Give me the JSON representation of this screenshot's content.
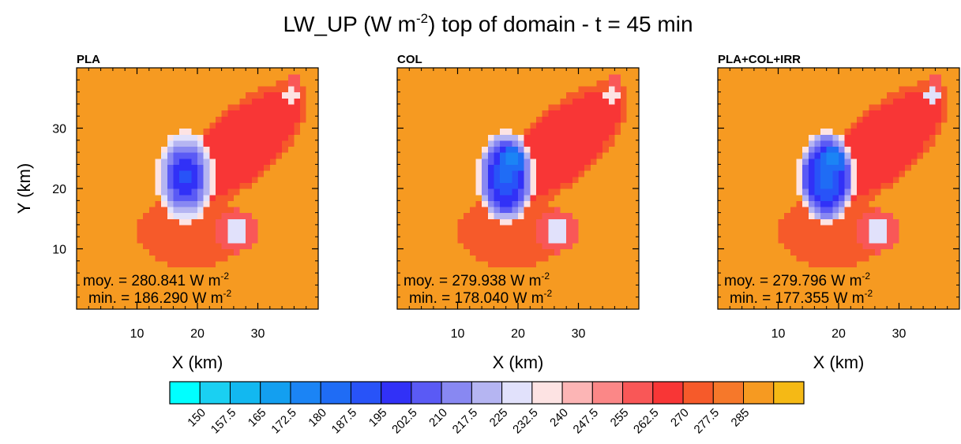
{
  "figure": {
    "title_main": "LW_UP (W m",
    "title_exp": "-2",
    "title_rest": ") top of domain - t = 45 min"
  },
  "chart_data": [
    {
      "type": "heatmap",
      "title": "PLA",
      "xlabel": "X (km)",
      "ylabel": "Y (km)",
      "xlim": [
        0,
        40
      ],
      "ylim": [
        0,
        40
      ],
      "xticks": [
        10,
        20,
        30
      ],
      "yticks": [
        10,
        20,
        30
      ],
      "stats": {
        "mean_label": "moy. = 280.841 W m",
        "min_label": "min. = 186.290 W m",
        "unit_exp": "-2",
        "mean": 280.841,
        "min": 186.29
      }
    },
    {
      "type": "heatmap",
      "title": "COL",
      "xlabel": "X (km)",
      "ylabel": "",
      "xlim": [
        0,
        40
      ],
      "ylim": [
        0,
        40
      ],
      "xticks": [
        10,
        20,
        30
      ],
      "yticks": [
        10,
        20,
        30
      ],
      "stats": {
        "mean_label": "moy. = 279.938 W m",
        "min_label": "min. = 178.040 W m",
        "unit_exp": "-2",
        "mean": 279.938,
        "min": 178.04
      }
    },
    {
      "type": "heatmap",
      "title": "PLA+COL+IRR",
      "xlabel": "X (km)",
      "ylabel": "",
      "xlim": [
        0,
        40
      ],
      "ylim": [
        0,
        40
      ],
      "xticks": [
        10,
        20,
        30
      ],
      "yticks": [
        10,
        20,
        30
      ],
      "stats": {
        "mean_label": "moy. = 279.796 W m",
        "min_label": "min. = 177.355 W m",
        "unit_exp": "-2",
        "mean": 279.796,
        "min": 177.355
      }
    }
  ],
  "colorbar": {
    "levels": [
      "150",
      "157.5",
      "165",
      "172.5",
      "180",
      "187.5",
      "195",
      "202.5",
      "210",
      "217.5",
      "225",
      "232.5",
      "240",
      "247.5",
      "255",
      "262.5",
      "270",
      "277.5",
      "285"
    ],
    "colors": [
      "#00ffff",
      "#1ad0f2",
      "#12b8f0",
      "#139ff0",
      "#1b84f5",
      "#1f6cf5",
      "#2853f8",
      "#3131f7",
      "#5a5af5",
      "#8888f2",
      "#b5b5f2",
      "#e1e1fb",
      "#fde3e3",
      "#fcb5b5",
      "#fb8787",
      "#f95757",
      "#f83636",
      "#f65a2a",
      "#f6782a",
      "#f69a21",
      "#f5b915"
    ]
  }
}
